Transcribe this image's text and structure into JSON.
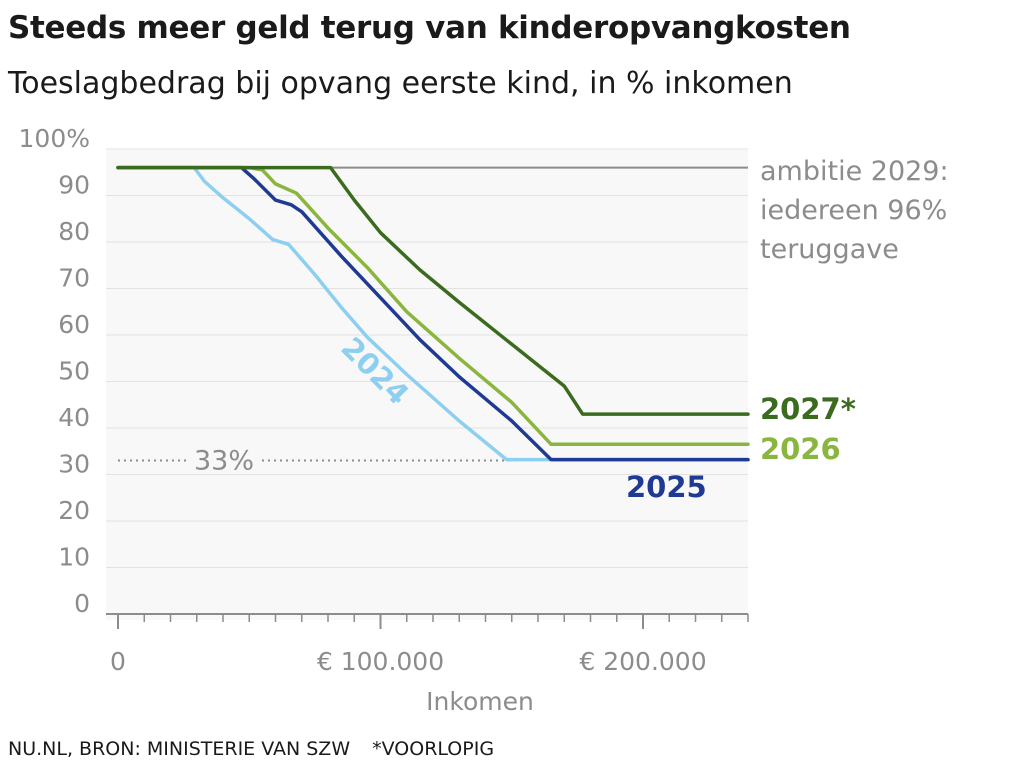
{
  "header": {
    "title": "Steeds meer geld terug van kinderopvangkosten",
    "subtitle": "Toeslagbedrag bij opvang eerste kind, in % inkomen"
  },
  "footer": {
    "source": "NU.NL, BRON: MINISTERIE VAN SZW",
    "note": "*VOORLOPIG"
  },
  "chart_data": {
    "type": "line",
    "title": "Steeds meer geld terug van kinderopvangkosten",
    "subtitle": "Toeslagbedrag bij opvang eerste kind, in % inkomen",
    "xlabel": "Inkomen",
    "ylabel": "",
    "xlim": [
      0,
      240000
    ],
    "ylim": [
      0,
      100
    ],
    "x_ticks": [
      0,
      100000,
      200000
    ],
    "x_tick_labels": [
      "0",
      "€ 100.000",
      "€ 200.000"
    ],
    "y_ticks": [
      0,
      10,
      20,
      30,
      40,
      50,
      60,
      70,
      80,
      90,
      100
    ],
    "y_tick_labels": [
      "0",
      "10",
      "20",
      "30",
      "40",
      "50",
      "60",
      "70",
      "80",
      "90",
      "100%"
    ],
    "grid": true,
    "legend": "direct labels",
    "colors": {
      "2024": "#8dcff0",
      "2025": "#1f3a93",
      "2026": "#8ab53f",
      "2027": "#3a6b1f",
      "ambitie": "#8c8c8c",
      "reference": "#8c8c8c"
    },
    "series": [
      {
        "name": "2024",
        "color": "#8dcff0",
        "points": [
          [
            0,
            96
          ],
          [
            29000,
            96
          ],
          [
            33000,
            93
          ],
          [
            40000,
            89.5
          ],
          [
            50000,
            85
          ],
          [
            59000,
            80.5
          ],
          [
            65000,
            79.5
          ],
          [
            75000,
            73
          ],
          [
            85000,
            66
          ],
          [
            95000,
            59.5
          ],
          [
            110000,
            51.5
          ],
          [
            130000,
            41.5
          ],
          [
            148000,
            33.2
          ],
          [
            240000,
            33.2
          ]
        ]
      },
      {
        "name": "2025",
        "color": "#1f3a93",
        "points": [
          [
            0,
            96
          ],
          [
            47000,
            96
          ],
          [
            52000,
            93.5
          ],
          [
            60000,
            89
          ],
          [
            66000,
            88
          ],
          [
            70000,
            86.5
          ],
          [
            85000,
            77
          ],
          [
            100000,
            68
          ],
          [
            115000,
            59
          ],
          [
            130000,
            51
          ],
          [
            150000,
            41.5
          ],
          [
            165000,
            33.2
          ],
          [
            240000,
            33.2
          ]
        ]
      },
      {
        "name": "2026",
        "color": "#8ab53f",
        "points": [
          [
            0,
            96
          ],
          [
            50000,
            96
          ],
          [
            55000,
            95.5
          ],
          [
            60000,
            92.5
          ],
          [
            68000,
            90.5
          ],
          [
            80000,
            83
          ],
          [
            95000,
            74.5
          ],
          [
            110000,
            65
          ],
          [
            130000,
            55
          ],
          [
            150000,
            45.5
          ],
          [
            165000,
            36.5
          ],
          [
            240000,
            36.5
          ]
        ]
      },
      {
        "name": "2027*",
        "color": "#3a6b1f",
        "points": [
          [
            0,
            96
          ],
          [
            81000,
            96
          ],
          [
            90000,
            89
          ],
          [
            100000,
            82
          ],
          [
            115000,
            74
          ],
          [
            130000,
            67
          ],
          [
            150000,
            58
          ],
          [
            170000,
            49
          ],
          [
            177000,
            43
          ],
          [
            240000,
            43
          ]
        ]
      }
    ],
    "reference_lines": [
      {
        "y": 96,
        "label": [
          "ambitie 2029:",
          "iedereen 96%",
          "teruggave"
        ]
      },
      {
        "y": 33,
        "label": "33%"
      }
    ],
    "annotations": [
      {
        "text": "2024",
        "series": "2024"
      },
      {
        "text": "2025",
        "series": "2025"
      },
      {
        "text": "2026",
        "series": "2026"
      },
      {
        "text": "2027*",
        "series": "2027*"
      }
    ]
  }
}
